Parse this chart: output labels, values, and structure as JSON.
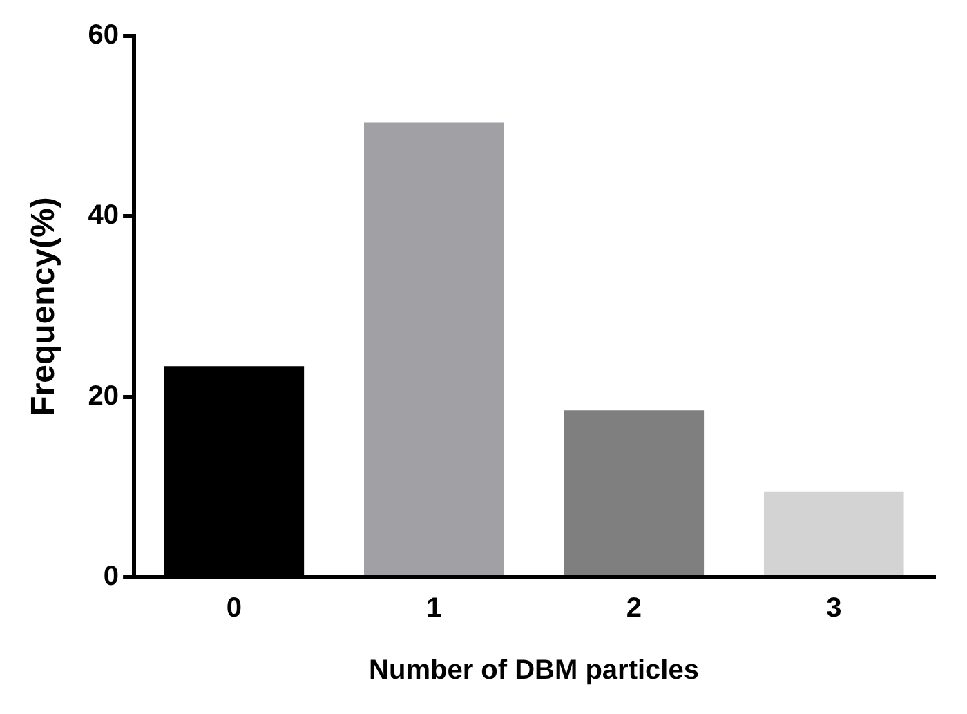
{
  "chart_data": {
    "type": "bar",
    "xlabel": "Number of DBM particles",
    "ylabel": "Frequency(%)",
    "categories": [
      "0",
      "1",
      "2",
      "3"
    ],
    "values": [
      23.4,
      50.4,
      18.5,
      9.5
    ],
    "colors": [
      "#000000",
      "#a0a0a5",
      "#7f7f7f",
      "#d3d3d3"
    ],
    "ylim": [
      0,
      60
    ],
    "yticks": [
      0,
      20,
      40,
      60
    ],
    "grid": false,
    "legend": false
  }
}
